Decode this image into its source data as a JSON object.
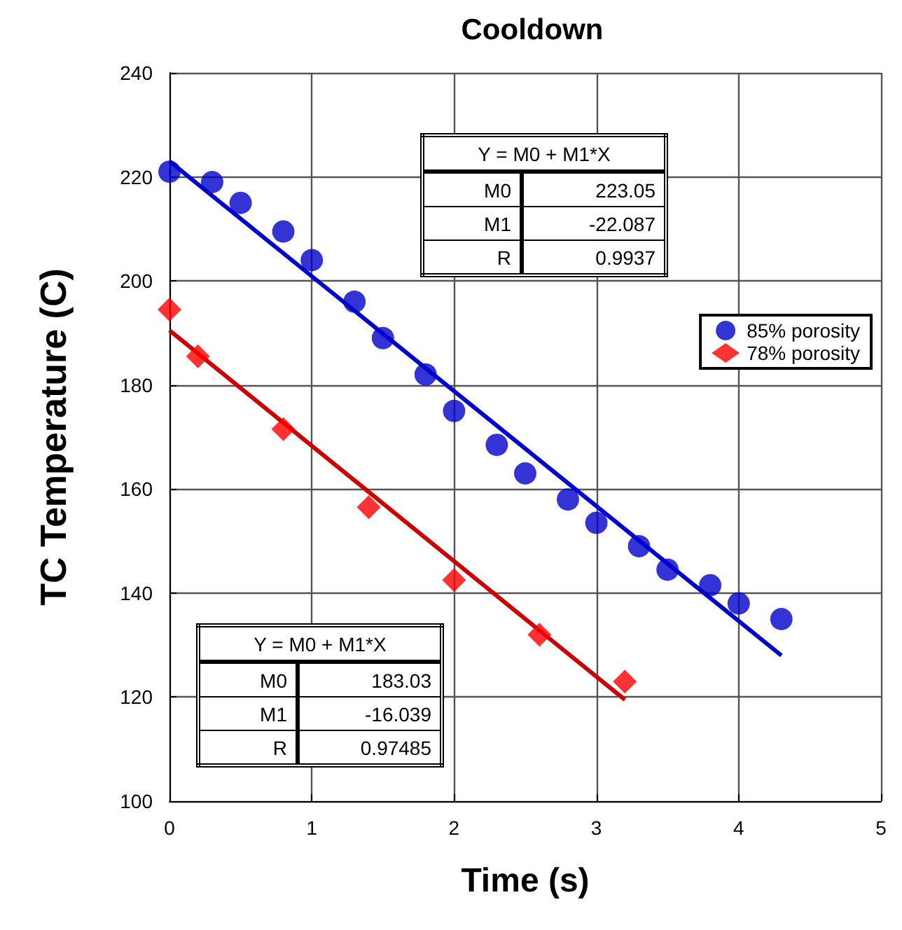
{
  "chart_data": {
    "type": "scatter",
    "title": "Cooldown",
    "xlabel": "Time (s)",
    "ylabel": "TC Temperature (C)",
    "xlim": [
      0,
      5
    ],
    "xticks": [
      0,
      1,
      2,
      3,
      4,
      5
    ],
    "ylim": [
      100,
      240
    ],
    "yticks": [
      100,
      120,
      140,
      160,
      180,
      200,
      220,
      240
    ],
    "grid": true,
    "legend": "right",
    "series": [
      {
        "name": "85% porosity",
        "marker": "circle",
        "color": "#0000cc",
        "x": [
          0,
          0.3,
          0.5,
          0.8,
          1.0,
          1.3,
          1.5,
          1.8,
          2.0,
          2.3,
          2.5,
          2.8,
          3.0,
          3.3,
          3.5,
          3.8,
          4.0,
          4.3
        ],
        "values": [
          221,
          219,
          215,
          209.5,
          204,
          196,
          189,
          182,
          175,
          168.5,
          163,
          158,
          153.5,
          149,
          144.5,
          141.5,
          138,
          135
        ]
      },
      {
        "name": "78% porosity",
        "marker": "diamond",
        "color": "#ff0000",
        "x": [
          0,
          0.2,
          0.8,
          1.4,
          2.0,
          2.6,
          3.2
        ],
        "values": [
          194.5,
          185.5,
          171.5,
          156.5,
          142.5,
          132,
          123
        ]
      },
      {
        "type": "line",
        "color": "#0000cc",
        "x": [
          0,
          4.3
        ],
        "values": [
          223,
          128
        ]
      },
      {
        "type": "line",
        "color": "#cc0000",
        "x": [
          0,
          3.2
        ],
        "values": [
          190.5,
          119.5
        ]
      }
    ],
    "annotations": [
      "Y = M0 + M1*X",
      "M0",
      "223.05",
      "M1",
      "-22.087",
      "R",
      "0.9937",
      "Y = M0 + M1*X",
      "M0",
      "183.03",
      "M1",
      "-16.039",
      "R",
      "0.97485"
    ]
  }
}
